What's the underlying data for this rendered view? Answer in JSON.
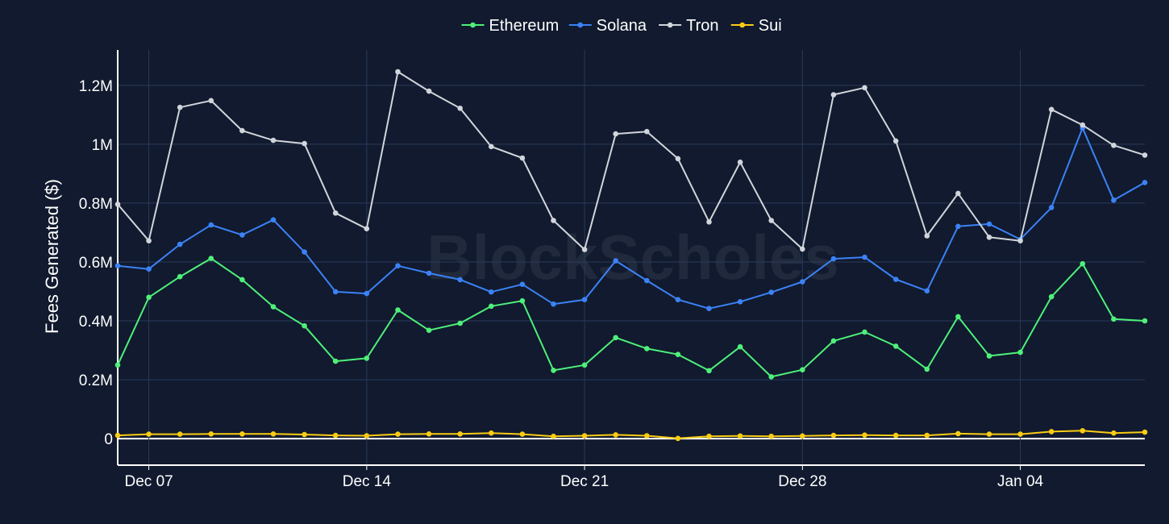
{
  "watermark": "BlockScholes",
  "chart_data": {
    "type": "line",
    "title": "",
    "xlabel": "",
    "ylabel": "Fees Generated ($)",
    "x": [
      "2024-12-06",
      "2024-12-07",
      "2024-12-08",
      "2024-12-09",
      "2024-12-10",
      "2024-12-11",
      "2024-12-12",
      "2024-12-13",
      "2024-12-14",
      "2024-12-15",
      "2024-12-16",
      "2024-12-17",
      "2024-12-18",
      "2024-12-19",
      "2024-12-20",
      "2024-12-21",
      "2024-12-22",
      "2024-12-23",
      "2024-12-24",
      "2024-12-25",
      "2024-12-26",
      "2024-12-27",
      "2024-12-28",
      "2024-12-29",
      "2024-12-30",
      "2024-12-31",
      "2025-01-01",
      "2025-01-02",
      "2025-01-03",
      "2025-01-04",
      "2025-01-05",
      "2025-01-06",
      "2025-01-07",
      "2025-01-08"
    ],
    "x_ticks": [
      {
        "date": "2024-12-07",
        "label": "Dec 07"
      },
      {
        "date": "2024-12-14",
        "label": "Dec 14"
      },
      {
        "date": "2024-12-21",
        "label": "Dec 21"
      },
      {
        "date": "2024-12-28",
        "label": "Dec 28"
      },
      {
        "date": "2025-01-04",
        "label": "Jan 04"
      }
    ],
    "xlim": [
      "2024-12-06",
      "2025-01-08"
    ],
    "ylim": [
      -90000,
      1320000
    ],
    "y_ticks": [
      {
        "value": 0,
        "label": "0"
      },
      {
        "value": 200000,
        "label": "0.2M"
      },
      {
        "value": 400000,
        "label": "0.4M"
      },
      {
        "value": 600000,
        "label": "0.6M"
      },
      {
        "value": 800000,
        "label": "0.8M"
      },
      {
        "value": 1000000,
        "label": "1M"
      },
      {
        "value": 1200000,
        "label": "1.2M"
      }
    ],
    "grid": true,
    "legend": "top-center",
    "series": [
      {
        "name": "Ethereum",
        "color": "#4ef07a",
        "values": [
          250000,
          480000,
          550000,
          612000,
          540000,
          448000,
          383000,
          263000,
          273000,
          437000,
          368000,
          392000,
          450000,
          468000,
          232000,
          250000,
          343000,
          306000,
          286000,
          231000,
          312000,
          210000,
          234000,
          332000,
          362000,
          314000,
          236000,
          414000,
          281000,
          293000,
          482000,
          594000,
          406000,
          400000
        ]
      },
      {
        "name": "Solana",
        "color": "#3b82f6",
        "values": [
          587000,
          576000,
          660000,
          726000,
          692000,
          743000,
          634000,
          499000,
          493000,
          587000,
          562000,
          540000,
          498000,
          524000,
          457000,
          472000,
          604000,
          537000,
          472000,
          442000,
          465000,
          497000,
          533000,
          611000,
          616000,
          541000,
          502000,
          721000,
          729000,
          677000,
          785000,
          1055000,
          810000,
          870000
        ]
      },
      {
        "name": "Tron",
        "color": "#d1d5db",
        "values": [
          796000,
          672000,
          1125000,
          1148000,
          1046000,
          1013000,
          1002000,
          766000,
          713000,
          1246000,
          1180000,
          1122000,
          992000,
          953000,
          741000,
          642000,
          1035000,
          1043000,
          951000,
          736000,
          939000,
          741000,
          644000,
          1168000,
          1192000,
          1011000,
          689000,
          833000,
          684000,
          672000,
          1118000,
          1065000,
          996000,
          963000
        ]
      },
      {
        "name": "Sui",
        "color": "#facc15",
        "values": [
          11000,
          15000,
          15000,
          16000,
          16000,
          16000,
          14000,
          11000,
          10000,
          15000,
          16000,
          16000,
          19000,
          15000,
          8000,
          10000,
          13000,
          10000,
          1000,
          8000,
          9000,
          8000,
          9000,
          11000,
          12000,
          11000,
          11000,
          17000,
          15000,
          15000,
          24000,
          27000,
          19000,
          22000
        ]
      }
    ]
  }
}
